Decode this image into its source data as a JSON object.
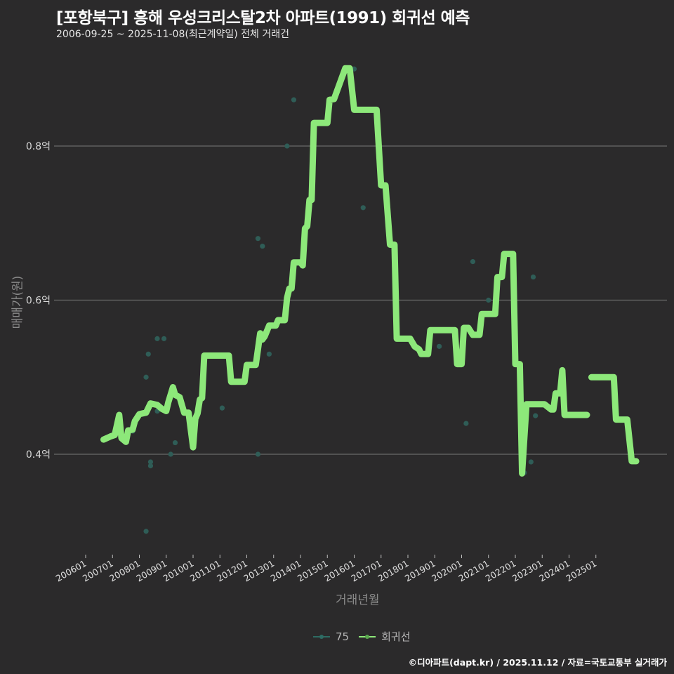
{
  "header": {
    "title": "[포항북구] 흥해 우성크리스탈2차 아파트(1991) 회귀선 예측",
    "subtitle": "2006-09-25 ~ 2025-11-08(최근계약일) 전체 거래건"
  },
  "axes": {
    "ylabel": "매매가(원)",
    "xlabel": "거래년월"
  },
  "legend": {
    "items": [
      {
        "label": "75",
        "color": "#2e6b63"
      },
      {
        "label": "회귀선",
        "color": "#8de87a"
      }
    ]
  },
  "footer": {
    "text": "©디아파트(dapt.kr) / 2025.11.12 / 자료=국토교통부 실거래가"
  },
  "colors": {
    "background": "#2b2a2b",
    "line": "#8de87a",
    "dots": "#2f5d57",
    "grid": "#6a6a6a"
  },
  "chart_data": {
    "type": "line",
    "title": "[포항북구] 흥해 우성크리스탈2차 아파트(1991) 회귀선 예측",
    "subtitle": "2006-09-25 ~ 2025-11-08(최근계약일) 전체 거래건",
    "xlabel": "거래년월",
    "ylabel": "매매가(원)",
    "x_tick_labels": [
      "200601",
      "200701",
      "200801",
      "200901",
      "201001",
      "201101",
      "201201",
      "201301",
      "201401",
      "201501",
      "201601",
      "201701",
      "201801",
      "201901",
      "202001",
      "202101",
      "202201",
      "202301",
      "202401",
      "202501"
    ],
    "y_tick_labels": [
      "0.4억",
      "0.6억",
      "0.8억"
    ],
    "y_ticks": [
      0.4,
      0.6,
      0.8
    ],
    "ylim": [
      0.27,
      0.92
    ],
    "grid": "horizontal",
    "legend_position": "bottom",
    "series": [
      {
        "name": "회귀선",
        "style": "step-line",
        "points": [
          [
            "2006-09",
            0.419
          ],
          [
            "2006-12",
            0.423
          ],
          [
            "2007-02",
            0.425
          ],
          [
            "2007-04",
            0.451
          ],
          [
            "2007-05",
            0.421
          ],
          [
            "2007-07",
            0.416
          ],
          [
            "2007-08",
            0.431
          ],
          [
            "2007-10",
            0.432
          ],
          [
            "2007-11",
            0.443
          ],
          [
            "2008-01",
            0.452
          ],
          [
            "2008-04",
            0.454
          ],
          [
            "2008-06",
            0.466
          ],
          [
            "2008-09",
            0.464
          ],
          [
            "2008-11",
            0.459
          ],
          [
            "2009-01",
            0.456
          ],
          [
            "2009-02",
            0.468
          ],
          [
            "2009-04",
            0.487
          ],
          [
            "2009-05",
            0.477
          ],
          [
            "2009-07",
            0.474
          ],
          [
            "2009-09",
            0.454
          ],
          [
            "2009-11",
            0.454
          ],
          [
            "2010-01",
            0.409
          ],
          [
            "2010-02",
            0.446
          ],
          [
            "2010-03",
            0.453
          ],
          [
            "2010-04",
            0.471
          ],
          [
            "2010-05",
            0.473
          ],
          [
            "2010-06",
            0.528
          ],
          [
            "2011-05",
            0.528
          ],
          [
            "2011-06",
            0.494
          ],
          [
            "2011-09",
            0.494
          ],
          [
            "2011-12",
            0.494
          ],
          [
            "2012-01",
            0.516
          ],
          [
            "2012-05",
            0.516
          ],
          [
            "2012-07",
            0.557
          ],
          [
            "2012-08",
            0.549
          ],
          [
            "2012-09",
            0.553
          ],
          [
            "2012-11",
            0.567
          ],
          [
            "2013-02",
            0.567
          ],
          [
            "2013-03",
            0.574
          ],
          [
            "2013-06",
            0.574
          ],
          [
            "2013-07",
            0.603
          ],
          [
            "2013-08",
            0.615
          ],
          [
            "2013-09",
            0.615
          ],
          [
            "2013-10",
            0.649
          ],
          [
            "2014-01",
            0.649
          ],
          [
            "2014-02",
            0.645
          ],
          [
            "2014-03",
            0.693
          ],
          [
            "2014-04",
            0.696
          ],
          [
            "2014-05",
            0.73
          ],
          [
            "2014-06",
            0.73
          ],
          [
            "2014-07",
            0.83
          ],
          [
            "2015-01",
            0.83
          ],
          [
            "2015-02",
            0.86
          ],
          [
            "2015-04",
            0.861
          ],
          [
            "2015-09",
            0.901
          ],
          [
            "2015-11",
            0.901
          ],
          [
            "2016-01",
            0.847
          ],
          [
            "2016-11",
            0.847
          ],
          [
            "2017-01",
            0.749
          ],
          [
            "2017-03",
            0.749
          ],
          [
            "2017-05",
            0.672
          ],
          [
            "2017-07",
            0.672
          ],
          [
            "2017-08",
            0.55
          ],
          [
            "2018-02",
            0.55
          ],
          [
            "2018-04",
            0.54
          ],
          [
            "2018-06",
            0.536
          ],
          [
            "2018-07",
            0.53
          ],
          [
            "2018-10",
            0.53
          ],
          [
            "2018-11",
            0.561
          ],
          [
            "2019-10",
            0.561
          ],
          [
            "2019-11",
            0.517
          ],
          [
            "2020-01",
            0.517
          ],
          [
            "2020-02",
            0.564
          ],
          [
            "2020-04",
            0.564
          ],
          [
            "2020-06",
            0.555
          ],
          [
            "2020-09",
            0.555
          ],
          [
            "2020-10",
            0.582
          ],
          [
            "2021-04",
            0.582
          ],
          [
            "2021-05",
            0.63
          ],
          [
            "2021-07",
            0.63
          ],
          [
            "2021-08",
            0.66
          ],
          [
            "2021-12",
            0.66
          ],
          [
            "2022-01",
            0.517
          ],
          [
            "2022-03",
            0.517
          ],
          [
            "2022-04",
            0.375
          ],
          [
            "2022-04",
            0.375
          ],
          [
            "2022-06",
            0.465
          ],
          [
            "2023-02",
            0.465
          ],
          [
            "2023-05",
            0.458
          ],
          [
            "2023-06",
            0.458
          ],
          [
            "2023-07",
            0.479
          ],
          [
            "2023-09",
            0.479
          ],
          [
            "2023-10",
            0.509
          ],
          [
            "2023-11",
            0.451
          ],
          [
            "2024-09",
            0.451
          ]
        ],
        "points_segment2": [
          [
            "2024-11",
            0.5
          ],
          [
            "2025-09",
            0.5
          ],
          [
            "2025-10",
            0.445
          ],
          [
            "2026-03",
            0.445
          ],
          [
            "2026-05",
            0.391
          ],
          [
            "2026-07",
            0.391
          ]
        ]
      },
      {
        "name": "75",
        "style": "scatter",
        "points": [
          [
            "2007-10",
            0.43
          ],
          [
            "2008-04",
            0.5
          ],
          [
            "2008-06",
            0.385
          ],
          [
            "2008-06",
            0.39
          ],
          [
            "2008-04",
            0.3
          ],
          [
            "2008-05",
            0.53
          ],
          [
            "2008-09",
            0.55
          ],
          [
            "2008-12",
            0.55
          ],
          [
            "2008-09",
            0.456
          ],
          [
            "2009-03",
            0.4
          ],
          [
            "2009-05",
            0.415
          ],
          [
            "2010-05",
            0.48
          ],
          [
            "2011-02",
            0.46
          ],
          [
            "2012-06",
            0.68
          ],
          [
            "2012-08",
            0.67
          ],
          [
            "2012-06",
            0.4
          ],
          [
            "2012-11",
            0.53
          ],
          [
            "2013-07",
            0.8
          ],
          [
            "2013-10",
            0.86
          ],
          [
            "2016-01",
            0.9
          ],
          [
            "2016-05",
            0.72
          ],
          [
            "2018-07",
            0.53
          ],
          [
            "2019-03",
            0.54
          ],
          [
            "2020-03",
            0.44
          ],
          [
            "2020-06",
            0.65
          ],
          [
            "2021-01",
            0.6
          ],
          [
            "2022-05",
            0.376
          ],
          [
            "2022-08",
            0.39
          ],
          [
            "2022-09",
            0.63
          ],
          [
            "2022-10",
            0.45
          ]
        ]
      }
    ]
  }
}
